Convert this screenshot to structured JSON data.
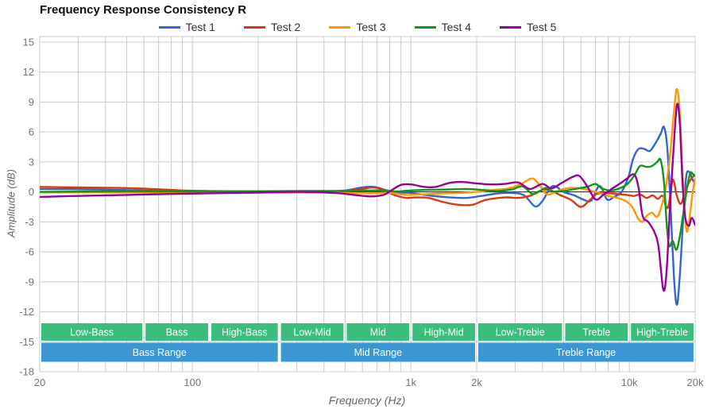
{
  "header": {
    "title": "Frequency Response Consistency R"
  },
  "colors": {
    "background": "#ffffff",
    "grid": "#cccccc",
    "plot_border": "#cccccc",
    "zero_line": "#212121",
    "axis_text": "#757575",
    "title_text": "#111111",
    "legend_text": "#333333",
    "band_text": "#ffffff"
  },
  "chart_data": {
    "type": "line",
    "title": "Frequency Response Consistency R",
    "xlabel": "Frequency (Hz)",
    "ylabel": "Amplitude (dB)",
    "x_scale": "log",
    "xlim": [
      20,
      20000
    ],
    "ylim": [
      -18,
      15
    ],
    "grid": true,
    "legend_position": "top",
    "y_ticks": [
      15,
      12,
      9,
      6,
      3,
      0,
      -3,
      -6,
      -9,
      -12,
      -15,
      -18
    ],
    "x_ticks": [
      {
        "f": 20,
        "label": "20"
      },
      {
        "f": 100,
        "label": "100"
      },
      {
        "f": 1000,
        "label": "1k"
      },
      {
        "f": 2000,
        "label": "2k"
      },
      {
        "f": 10000,
        "label": "10k"
      },
      {
        "f": 20000,
        "label": "20k"
      }
    ],
    "series": [
      {
        "name": "Test 1",
        "color": "#3366CC",
        "points": [
          [
            20,
            0.3
          ],
          [
            35,
            0.25
          ],
          [
            60,
            0.15
          ],
          [
            100,
            0.1
          ],
          [
            200,
            0.05
          ],
          [
            400,
            0.05
          ],
          [
            500,
            0.15
          ],
          [
            600,
            0.45
          ],
          [
            680,
            0.5
          ],
          [
            780,
            0.15
          ],
          [
            900,
            -0.05
          ],
          [
            1000,
            -0.1
          ],
          [
            1200,
            -0.35
          ],
          [
            1500,
            -0.55
          ],
          [
            1800,
            -0.6
          ],
          [
            2100,
            -0.4
          ],
          [
            2500,
            -0.15
          ],
          [
            2900,
            -0.1
          ],
          [
            3300,
            -0.35
          ],
          [
            3700,
            -1.45
          ],
          [
            4000,
            -0.9
          ],
          [
            4350,
            0.4
          ],
          [
            4600,
            0.55
          ],
          [
            5000,
            0
          ],
          [
            5600,
            -0.35
          ],
          [
            6200,
            -0.8
          ],
          [
            6700,
            -0.85
          ],
          [
            7300,
            0.6
          ],
          [
            7900,
            -0.75
          ],
          [
            8500,
            -0.5
          ],
          [
            9200,
            0
          ],
          [
            9900,
            1.5
          ],
          [
            10400,
            3.3
          ],
          [
            11000,
            4.3
          ],
          [
            11700,
            4.3
          ],
          [
            12400,
            4.1
          ],
          [
            13100,
            4.8
          ],
          [
            13900,
            5.8
          ],
          [
            14400,
            6.5
          ],
          [
            14900,
            4.5
          ],
          [
            15400,
            -1
          ],
          [
            16000,
            -8.5
          ],
          [
            16500,
            -11.3
          ],
          [
            17000,
            -8.5
          ],
          [
            17600,
            -3
          ],
          [
            18200,
            1.5
          ],
          [
            18800,
            2
          ],
          [
            19400,
            1.3
          ],
          [
            20000,
            0.8
          ]
        ]
      },
      {
        "name": "Test 2",
        "color": "#DC3912",
        "points": [
          [
            20,
            0.5
          ],
          [
            30,
            0.45
          ],
          [
            45,
            0.4
          ],
          [
            65,
            0.3
          ],
          [
            90,
            0.15
          ],
          [
            130,
            0.05
          ],
          [
            200,
            0
          ],
          [
            350,
            0
          ],
          [
            500,
            0.1
          ],
          [
            600,
            0.3
          ],
          [
            680,
            0.45
          ],
          [
            760,
            0.1
          ],
          [
            850,
            -0.35
          ],
          [
            950,
            -0.6
          ],
          [
            1050,
            -0.55
          ],
          [
            1200,
            -0.6
          ],
          [
            1400,
            -1
          ],
          [
            1600,
            -1.25
          ],
          [
            1900,
            -1.3
          ],
          [
            2200,
            -0.8
          ],
          [
            2700,
            -0.55
          ],
          [
            3100,
            -0.6
          ],
          [
            3500,
            -0.4
          ],
          [
            3900,
            0.1
          ],
          [
            4300,
            0.2
          ],
          [
            4800,
            -0.3
          ],
          [
            5400,
            -0.8
          ],
          [
            6000,
            -1.5
          ],
          [
            6600,
            -0.8
          ],
          [
            7100,
            -0.2
          ],
          [
            7800,
            -0.1
          ],
          [
            8700,
            -0.2
          ],
          [
            9700,
            -0.3
          ],
          [
            10500,
            -0.4
          ],
          [
            11200,
            -0.25
          ],
          [
            12000,
            -0.6
          ],
          [
            12800,
            -0.35
          ],
          [
            13500,
            -0.7
          ],
          [
            14200,
            -0.4
          ],
          [
            15000,
            -1.6
          ],
          [
            15800,
            1.2
          ],
          [
            16500,
            -0.4
          ],
          [
            17200,
            -1.2
          ],
          [
            18000,
            0
          ],
          [
            18800,
            1
          ],
          [
            19500,
            1.5
          ],
          [
            20000,
            1.7
          ]
        ]
      },
      {
        "name": "Test 3",
        "color": "#FF9900",
        "points": [
          [
            20,
            -0.05
          ],
          [
            50,
            -0.05
          ],
          [
            100,
            -0.1
          ],
          [
            200,
            -0.1
          ],
          [
            350,
            -0.05
          ],
          [
            500,
            -0.1
          ],
          [
            650,
            -0.15
          ],
          [
            800,
            -0.1
          ],
          [
            950,
            -0.3
          ],
          [
            1100,
            -0.25
          ],
          [
            1400,
            -0.15
          ],
          [
            1700,
            -0.1
          ],
          [
            2000,
            0
          ],
          [
            2400,
            0.2
          ],
          [
            2800,
            0.35
          ],
          [
            3200,
            0.8
          ],
          [
            3600,
            1.35
          ],
          [
            3900,
            0.6
          ],
          [
            4200,
            -0.25
          ],
          [
            4600,
            0
          ],
          [
            5000,
            0.3
          ],
          [
            5500,
            0.4
          ],
          [
            6000,
            0.35
          ],
          [
            6600,
            0.15
          ],
          [
            7200,
            -0.05
          ],
          [
            8000,
            -0.4
          ],
          [
            8800,
            -0.6
          ],
          [
            9600,
            -0.9
          ],
          [
            10300,
            -1.5
          ],
          [
            11000,
            -2.7
          ],
          [
            11500,
            -3
          ],
          [
            12000,
            -2.4
          ],
          [
            12700,
            -2.1
          ],
          [
            13400,
            -2.5
          ],
          [
            14000,
            -1.5
          ],
          [
            14700,
            0.5
          ],
          [
            15400,
            4
          ],
          [
            16000,
            8
          ],
          [
            16500,
            10.3
          ],
          [
            17000,
            8
          ],
          [
            17500,
            2
          ],
          [
            18000,
            -2.5
          ],
          [
            18400,
            -4
          ],
          [
            19000,
            -2
          ],
          [
            19500,
            0
          ],
          [
            20000,
            1.3
          ]
        ]
      },
      {
        "name": "Test 4",
        "color": "#109618",
        "points": [
          [
            20,
            0
          ],
          [
            40,
            0.05
          ],
          [
            80,
            0.05
          ],
          [
            150,
            0.05
          ],
          [
            300,
            0.1
          ],
          [
            500,
            0.1
          ],
          [
            700,
            0.15
          ],
          [
            850,
            0.05
          ],
          [
            1000,
            0.15
          ],
          [
            1200,
            0.2
          ],
          [
            1500,
            0.25
          ],
          [
            1800,
            0.3
          ],
          [
            2100,
            0.2
          ],
          [
            2500,
            0.1
          ],
          [
            2900,
            0.25
          ],
          [
            3250,
            0.55
          ],
          [
            3600,
            -0.2
          ],
          [
            3900,
            0.1
          ],
          [
            4150,
            0.4
          ],
          [
            4500,
            0.05
          ],
          [
            5000,
            0.1
          ],
          [
            5500,
            0.25
          ],
          [
            6000,
            0.4
          ],
          [
            6500,
            0.55
          ],
          [
            7000,
            0.8
          ],
          [
            7500,
            0.35
          ],
          [
            8200,
            0.15
          ],
          [
            9000,
            0.35
          ],
          [
            9800,
            0.8
          ],
          [
            10500,
            1.6
          ],
          [
            11200,
            2.6
          ],
          [
            12000,
            2.5
          ],
          [
            12700,
            2.6
          ],
          [
            13400,
            3
          ],
          [
            13900,
            3.2
          ],
          [
            14400,
            1
          ],
          [
            14800,
            -3
          ],
          [
            15200,
            -5.4
          ],
          [
            15800,
            -4.9
          ],
          [
            16400,
            -5.8
          ],
          [
            17000,
            -4.5
          ],
          [
            17700,
            -2
          ],
          [
            18400,
            0.5
          ],
          [
            19000,
            1.9
          ],
          [
            19500,
            1.8
          ],
          [
            20000,
            1.6
          ]
        ]
      },
      {
        "name": "Test 5",
        "color": "#990099",
        "points": [
          [
            20,
            -0.5
          ],
          [
            30,
            -0.4
          ],
          [
            50,
            -0.3
          ],
          [
            80,
            -0.2
          ],
          [
            150,
            -0.1
          ],
          [
            300,
            0
          ],
          [
            450,
            -0.1
          ],
          [
            550,
            -0.3
          ],
          [
            650,
            -0.45
          ],
          [
            750,
            -0.3
          ],
          [
            820,
            0.2
          ],
          [
            900,
            0.7
          ],
          [
            1000,
            0.75
          ],
          [
            1150,
            0.5
          ],
          [
            1300,
            0.5
          ],
          [
            1500,
            0.9
          ],
          [
            1700,
            1
          ],
          [
            2000,
            0.85
          ],
          [
            2300,
            0.75
          ],
          [
            2700,
            0.8
          ],
          [
            3100,
            0.95
          ],
          [
            3500,
            0.3
          ],
          [
            4000,
            0.8
          ],
          [
            4400,
            0.35
          ],
          [
            4900,
            0.9
          ],
          [
            5500,
            1.5
          ],
          [
            5900,
            1.6
          ],
          [
            6400,
            0.6
          ],
          [
            7000,
            -0.75
          ],
          [
            7600,
            -0.3
          ],
          [
            8300,
            0.3
          ],
          [
            9000,
            0.8
          ],
          [
            9700,
            1.3
          ],
          [
            10500,
            1.75
          ],
          [
            11000,
            0.5
          ],
          [
            11500,
            -2.4
          ],
          [
            12200,
            -3
          ],
          [
            13000,
            -4
          ],
          [
            13600,
            -5.5
          ],
          [
            14300,
            -9.8
          ],
          [
            14800,
            -8
          ],
          [
            15300,
            -2
          ],
          [
            15900,
            4
          ],
          [
            16500,
            8.7
          ],
          [
            17000,
            7
          ],
          [
            17500,
            1
          ],
          [
            18000,
            -2.5
          ],
          [
            18700,
            -3.4
          ],
          [
            19300,
            -2.6
          ],
          [
            20000,
            -3.3
          ]
        ]
      }
    ],
    "range_bands": {
      "sub_color": "#3BBE7C",
      "main_color": "#3B97D3",
      "sub": [
        {
          "label": "Low-Bass",
          "from": 20,
          "to": 60
        },
        {
          "label": "Bass",
          "from": 60,
          "to": 120
        },
        {
          "label": "High-Bass",
          "from": 120,
          "to": 250
        },
        {
          "label": "Low-Mid",
          "from": 250,
          "to": 500
        },
        {
          "label": "Mid",
          "from": 500,
          "to": 1000
        },
        {
          "label": "High-Mid",
          "from": 1000,
          "to": 2000
        },
        {
          "label": "Low-Treble",
          "from": 2000,
          "to": 5000
        },
        {
          "label": "Treble",
          "from": 5000,
          "to": 10000
        },
        {
          "label": "High-Treble",
          "from": 10000,
          "to": 20000
        }
      ],
      "main": [
        {
          "label": "Bass Range",
          "from": 20,
          "to": 250
        },
        {
          "label": "Mid Range",
          "from": 250,
          "to": 2000
        },
        {
          "label": "Treble Range",
          "from": 2000,
          "to": 20000
        }
      ]
    }
  }
}
